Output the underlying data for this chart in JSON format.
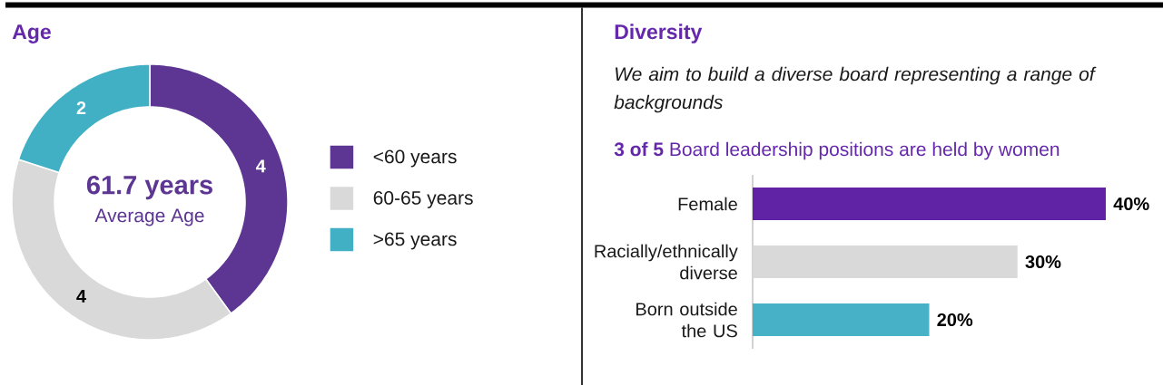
{
  "chart_data": [
    {
      "type": "donut",
      "title": "Age",
      "categories": [
        "<60 years",
        "60-65 years",
        ">65 years"
      ],
      "values": [
        4,
        4,
        2
      ],
      "colors": [
        "#5c3692",
        "#d9d9d9",
        "#41b0c4"
      ],
      "data_labels": true,
      "legend": "right",
      "annotations": [
        "61.7 years",
        "Average Age"
      ]
    },
    {
      "type": "bar",
      "orientation": "horizontal",
      "title": "Diversity",
      "subtitle": "We aim to build a diverse board representing a range of backgrounds",
      "annotations": [
        "**3 of 5** Board leadership positions are held by women"
      ],
      "categories": [
        "Female",
        "Racially/ethnically diverse",
        "Born outside the US"
      ],
      "values": [
        40,
        30,
        20
      ],
      "colors": [
        "#6023a6",
        "#d9d9d9",
        "#46b1c7"
      ],
      "value_labels": [
        "40%",
        "30%",
        "20%"
      ]
    }
  ]
}
